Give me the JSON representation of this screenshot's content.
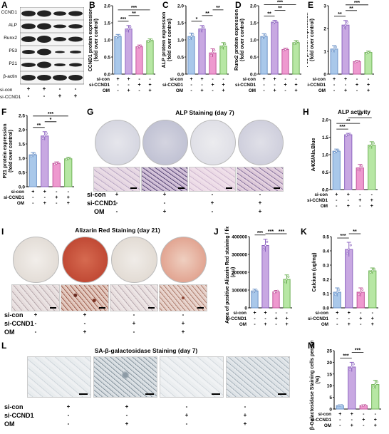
{
  "colors": {
    "c1": "#a9c8ea",
    "c2": "#c8a8e2",
    "c3": "#ee99cf",
    "c4": "#b7e7a4",
    "b1": "#6f95c8",
    "b2": "#8d65c0",
    "b3": "#c3579e",
    "b4": "#6fb257"
  },
  "groups": {
    "si_con": [
      "+",
      "+",
      "-",
      "-"
    ],
    "si_ccnd1": [
      "-",
      "-",
      "+",
      "+"
    ],
    "om": [
      "-",
      "+",
      "-",
      "+"
    ]
  },
  "row_labels": {
    "si_con": "si-con",
    "si_ccnd1": "si-CCND1",
    "om": "OM"
  },
  "panels": {
    "A": "A",
    "B": "B",
    "C": "C",
    "D": "D",
    "E": "E",
    "F": "F",
    "G": "G",
    "H": "H",
    "I": "I",
    "J": "J",
    "K": "K",
    "L": "L",
    "M": "M"
  },
  "blot": {
    "bands": [
      "CCND1",
      "ALP",
      "Runx2",
      "P53",
      "P21",
      "β-actin"
    ]
  },
  "images": {
    "alp_title": "ALP Staining (day 7)",
    "alizarin_title": "Alizarin Red Staining (day 21)",
    "sa_title": "SA-β-galactosidase Staining (day 7)"
  },
  "chart_data": [
    {
      "id": "B",
      "type": "bar",
      "ylabel": "CCND1 protein expression (fold over control)",
      "ylim": [
        0,
        2.0
      ],
      "yticks": [
        "0.0",
        "0.5",
        "1.0",
        "1.5",
        "2.0"
      ],
      "values": [
        1.1,
        1.32,
        0.8,
        0.98
      ],
      "errors": [
        0.06,
        0.1,
        0.05,
        0.05
      ],
      "sig": [
        [
          "***",
          0,
          1
        ],
        [
          "**",
          1,
          2
        ],
        [
          "***",
          0,
          3
        ]
      ]
    },
    {
      "id": "C",
      "type": "bar",
      "ylabel": "ALP protein expression (fold over control)",
      "ylim": [
        0,
        2.0
      ],
      "yticks": [
        "0.0",
        "0.5",
        "1.0",
        "1.5",
        "2.0"
      ],
      "values": [
        1.1,
        1.32,
        0.62,
        0.82
      ],
      "errors": [
        0.1,
        0.1,
        0.12,
        0.1
      ],
      "sig": [
        [
          "*",
          0,
          1
        ],
        [
          "**",
          1,
          2
        ],
        [
          "**",
          2,
          3
        ]
      ]
    },
    {
      "id": "D",
      "type": "bar",
      "ylabel": "Runx2 protein expression (fold over control)",
      "ylim": [
        0,
        2.0
      ],
      "yticks": [
        "0.0",
        "0.5",
        "1.0",
        "1.5",
        "2.0"
      ],
      "values": [
        1.1,
        1.52,
        0.72,
        0.92
      ],
      "errors": [
        0.08,
        0.05,
        0.04,
        0.06
      ],
      "sig": [
        [
          "**",
          0,
          1
        ],
        [
          "**",
          1,
          2
        ],
        [
          "***",
          0,
          3
        ]
      ]
    },
    {
      "id": "E",
      "type": "bar",
      "ylabel": "P53 protein expression (fold over control)",
      "ylim": [
        0,
        3
      ],
      "yticks": [
        "0",
        "1",
        "2",
        "3"
      ],
      "values": [
        1.1,
        2.15,
        0.55,
        0.95
      ],
      "errors": [
        0.15,
        0.2,
        0.05,
        0.06
      ],
      "sig": [
        [
          "**",
          0,
          1
        ],
        [
          "**",
          1,
          2
        ],
        [
          "***",
          1,
          3
        ]
      ]
    },
    {
      "id": "F",
      "type": "bar",
      "ylabel": "P21 protein expression (fold over control)",
      "ylim": [
        0,
        2.5
      ],
      "yticks": [
        "0.0",
        "0.5",
        "1.0",
        "1.5",
        "2.0",
        "2.5"
      ],
      "values": [
        1.12,
        1.78,
        0.82,
        0.98
      ],
      "errors": [
        0.08,
        0.15,
        0.05,
        0.05
      ],
      "sig": [
        [
          "**",
          0,
          1
        ],
        [
          "*",
          1,
          2
        ],
        [
          "***",
          0,
          3
        ]
      ]
    },
    {
      "id": "H",
      "type": "bar",
      "title": "ALP activity",
      "ylabel": "A405/Ala.Blue",
      "ylim": [
        0,
        2.0
      ],
      "yticks": [
        "0.0",
        "0.5",
        "1.0",
        "1.5",
        "2.0"
      ],
      "values": [
        1.1,
        1.57,
        0.62,
        1.27
      ],
      "errors": [
        0.06,
        0.04,
        0.1,
        0.1
      ],
      "sig": [
        [
          "***",
          0,
          1
        ],
        [
          "**",
          0,
          2
        ],
        [
          "**",
          1,
          3
        ]
      ]
    },
    {
      "id": "J",
      "type": "bar",
      "ylabel": "Area of positive Alizarin Red staining / field (a.u)",
      "ylim": [
        0,
        400000
      ],
      "yticks": [
        "0",
        "100000",
        "200000",
        "300000",
        "400000"
      ],
      "values": [
        95000,
        350000,
        90000,
        160000
      ],
      "errors": [
        10000,
        35000,
        8000,
        25000
      ],
      "sig": [
        [
          "***",
          0,
          1
        ],
        [
          "***",
          1,
          2
        ],
        [
          "***",
          2,
          3
        ]
      ]
    },
    {
      "id": "K",
      "type": "bar",
      "ylabel": "Calcium (ug/mg)",
      "ylim": [
        0,
        0.5
      ],
      "yticks": [
        "0.0",
        "0.1",
        "0.2",
        "0.3",
        "0.4",
        "0.5"
      ],
      "values": [
        0.11,
        0.41,
        0.11,
        0.26
      ],
      "errors": [
        0.03,
        0.05,
        0.03,
        0.02
      ],
      "sig": [
        [
          "***",
          0,
          1
        ],
        [
          "**",
          1,
          2
        ]
      ]
    },
    {
      "id": "M",
      "type": "bar",
      "ylabel": "β-Galactosidase Staining cells percentage (%)",
      "ylim": [
        0,
        25
      ],
      "yticks": [
        "0",
        "5",
        "10",
        "15",
        "20",
        "25"
      ],
      "values": [
        1.5,
        18.0,
        1.5,
        10.5
      ],
      "errors": [
        0.3,
        2.0,
        0.3,
        1.8
      ],
      "sig": [
        [
          "***",
          0,
          1
        ],
        [
          "***",
          1,
          2
        ]
      ]
    }
  ]
}
